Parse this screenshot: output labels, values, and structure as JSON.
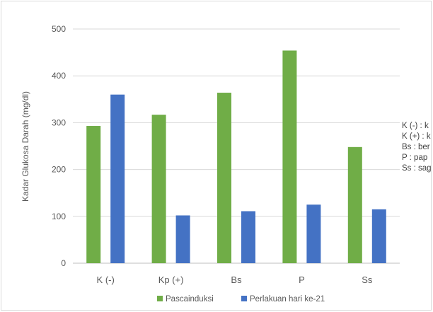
{
  "chart_data": {
    "type": "bar",
    "title": "",
    "xlabel": "",
    "ylabel": "Kadar Glukosa Darah (mg/dl)",
    "ylim": [
      0,
      500
    ],
    "yticks": [
      0,
      100,
      200,
      300,
      400,
      500
    ],
    "categories": [
      "K (-)",
      "Kp (+)",
      "Bs",
      "P",
      "Ss"
    ],
    "series": [
      {
        "name": "Pascainduksi",
        "color": "#70ad47",
        "values": [
          293,
          317,
          364,
          454,
          248
        ]
      },
      {
        "name": "Perlakuan hari ke-21",
        "color": "#4472c4",
        "values": [
          360,
          102,
          111,
          125,
          115
        ]
      }
    ],
    "grid": true,
    "legend_position": "bottom",
    "side_notes": [
      "K (-) : k",
      "K (+) : k",
      "Bs : ber",
      "P : pap",
      "Ss : sag"
    ]
  }
}
